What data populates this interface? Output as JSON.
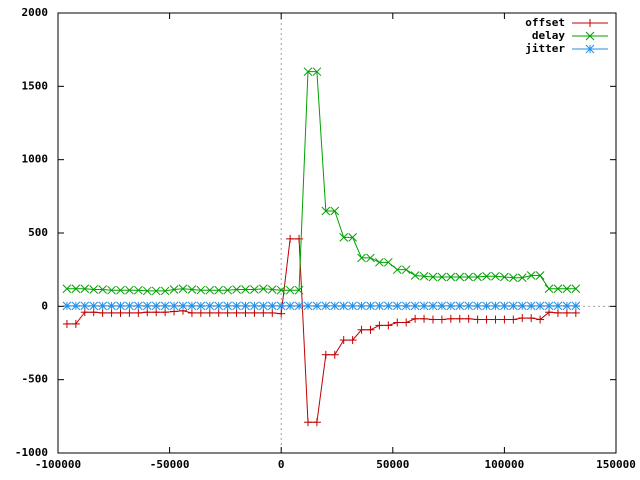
{
  "chart_data": {
    "type": "line",
    "x": [
      -96000,
      -92000,
      -88000,
      -84000,
      -80000,
      -76000,
      -72000,
      -68000,
      -64000,
      -60000,
      -56000,
      -52000,
      -48000,
      -44000,
      -40000,
      -36000,
      -32000,
      -28000,
      -24000,
      -20000,
      -16000,
      -12000,
      -8000,
      -4000,
      0,
      4000,
      8000,
      12000,
      16000,
      20000,
      24000,
      28000,
      32000,
      36000,
      40000,
      44000,
      48000,
      52000,
      56000,
      60000,
      64000,
      68000,
      72000,
      76000,
      80000,
      84000,
      88000,
      92000,
      96000,
      100000,
      104000,
      108000,
      112000,
      116000,
      120000,
      124000,
      128000,
      132000
    ],
    "series": [
      {
        "name": "offset",
        "color": "#c00000",
        "marker": "+",
        "values": [
          -120,
          -120,
          -40,
          -40,
          -45,
          -45,
          -45,
          -45,
          -45,
          -40,
          -40,
          -40,
          -35,
          -30,
          -45,
          -45,
          -45,
          -45,
          -45,
          -45,
          -45,
          -45,
          -45,
          -45,
          -50,
          460,
          460,
          -790,
          -790,
          -330,
          -330,
          -230,
          -230,
          -160,
          -160,
          -130,
          -130,
          -110,
          -110,
          -85,
          -85,
          -90,
          -90,
          -85,
          -85,
          -85,
          -90,
          -90,
          -90,
          -90,
          -90,
          -80,
          -80,
          -90,
          -40,
          -45,
          -45,
          -45
        ]
      },
      {
        "name": "delay",
        "color": "#00a000",
        "marker": "x",
        "values": [
          120,
          120,
          120,
          115,
          115,
          110,
          110,
          110,
          110,
          105,
          105,
          105,
          115,
          120,
          115,
          110,
          110,
          110,
          110,
          115,
          115,
          115,
          120,
          115,
          110,
          110,
          110,
          1600,
          1600,
          650,
          650,
          470,
          470,
          330,
          330,
          300,
          300,
          250,
          250,
          210,
          205,
          200,
          200,
          200,
          200,
          200,
          200,
          205,
          205,
          200,
          195,
          195,
          210,
          210,
          120,
          120,
          120,
          120
        ]
      },
      {
        "name": "jitter",
        "color": "#2090e8",
        "marker": "*",
        "values": [
          3,
          3,
          3,
          3,
          3,
          3,
          3,
          3,
          3,
          3,
          3,
          3,
          3,
          3,
          3,
          3,
          3,
          3,
          3,
          3,
          3,
          3,
          3,
          3,
          3,
          3,
          3,
          3,
          3,
          3,
          3,
          3,
          3,
          3,
          3,
          3,
          3,
          3,
          3,
          3,
          3,
          3,
          3,
          3,
          3,
          3,
          3,
          3,
          3,
          3,
          3,
          3,
          3,
          3,
          3,
          3,
          3,
          3
        ]
      }
    ],
    "xlim": [
      -100000,
      150000
    ],
    "xticks": [
      -100000,
      -50000,
      0,
      50000,
      100000,
      150000
    ],
    "ylim": [
      -1000,
      2000
    ],
    "yticks": [
      -1000,
      -500,
      0,
      500,
      1000,
      1500,
      2000
    ],
    "zero_axes": true,
    "legend": "top-right"
  }
}
